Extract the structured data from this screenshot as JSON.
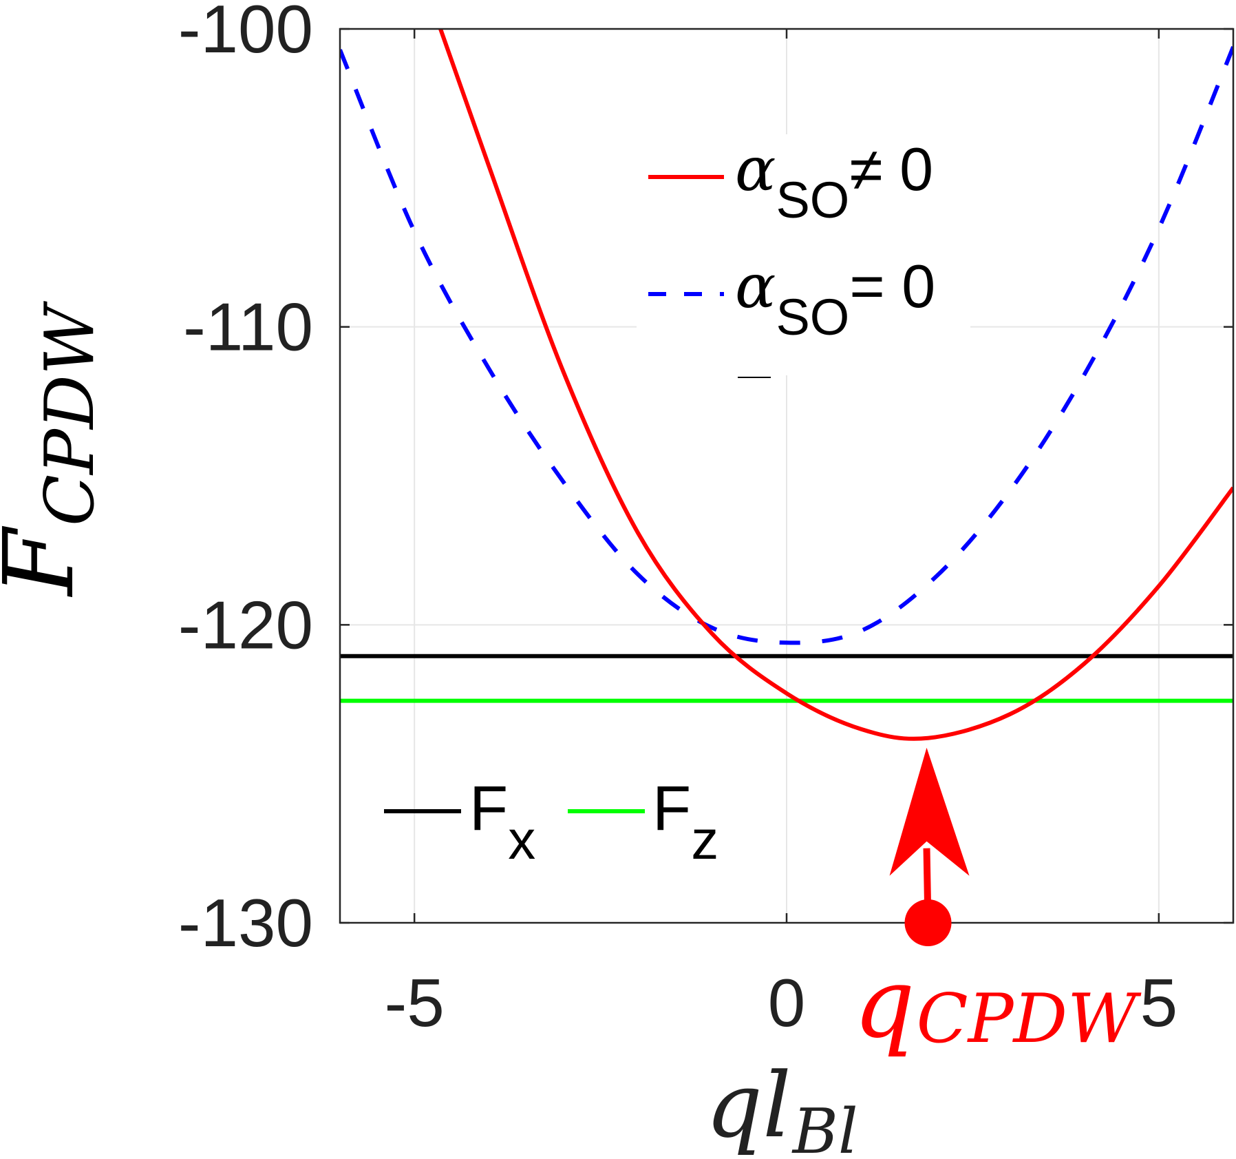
{
  "chart_data": {
    "type": "line",
    "xlabel": {
      "main": "ql",
      "sub": "Bl"
    },
    "ylabel": {
      "main": "F",
      "sub": "CPDW"
    },
    "xlim": [
      -6,
      6
    ],
    "ylim": [
      -130,
      -100
    ],
    "xticks": [
      -5,
      0,
      5
    ],
    "yticks": [
      -100,
      -110,
      -120,
      -130
    ],
    "xtick_labels": [
      "-5",
      "0",
      "5"
    ],
    "ytick_labels": [
      "-100",
      "-110",
      "-120",
      "-130"
    ],
    "grid": true,
    "series": [
      {
        "name": {
          "main": "α",
          "sub": "SO",
          "rel": "≠ 0"
        },
        "style": "solid",
        "color": "#ff0000",
        "x": [
          -4.65,
          -4.0,
          -3.0,
          -2.0,
          -1.0,
          0.0,
          1.0,
          1.9,
          3.0,
          4.0,
          5.0,
          6.0
        ],
        "y": [
          -100.0,
          -104.6,
          -111.5,
          -116.9,
          -120.3,
          -122.3,
          -123.5,
          -123.8,
          -123.0,
          -121.3,
          -118.7,
          -115.4
        ]
      },
      {
        "name": {
          "main": "α",
          "sub": "SO",
          "rel": "= 0"
        },
        "style": "dashed",
        "color": "#0000ff",
        "x": [
          -6.0,
          -5.0,
          -4.0,
          -3.0,
          -2.0,
          -1.0,
          0.0,
          1.0,
          2.0,
          3.0,
          4.0,
          5.0,
          6.0
        ],
        "y": [
          -100.7,
          -106.8,
          -111.4,
          -115.2,
          -118.3,
          -120.1,
          -120.6,
          -120.2,
          -118.4,
          -115.5,
          -111.6,
          -106.7,
          -100.6
        ]
      },
      {
        "name": {
          "main": "F",
          "sub": "x"
        },
        "style": "solid",
        "color": "#000000",
        "x": [
          -6.0,
          6.0
        ],
        "y": [
          -121.05,
          -121.05
        ]
      },
      {
        "name": {
          "main": "F",
          "sub": "z"
        },
        "style": "solid",
        "color": "#00ff00",
        "x": [
          -6.0,
          6.0
        ],
        "y": [
          -122.55,
          -122.55
        ]
      }
    ],
    "annotations": [
      {
        "kind": "arrow",
        "color": "#ff0000",
        "x": 1.9,
        "y_from": -130,
        "y_to": -123.8,
        "label": {
          "main": "q",
          "sub": "CPDW"
        }
      }
    ],
    "legends": [
      {
        "entries": [
          0,
          1
        ],
        "placement": "top-right"
      },
      {
        "entries": [
          2,
          3
        ],
        "placement": "bottom-left",
        "orientation": "horizontal"
      }
    ]
  }
}
